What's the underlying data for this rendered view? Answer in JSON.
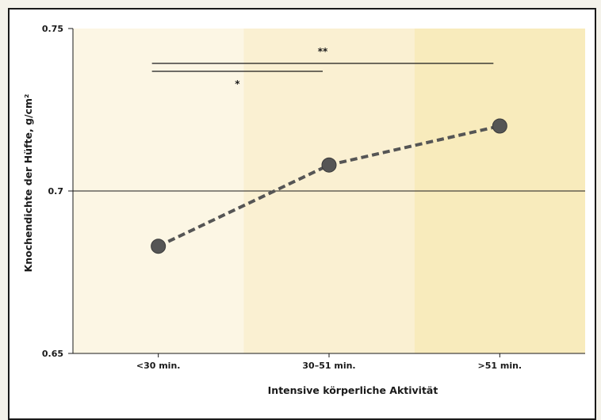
{
  "chart_data": {
    "type": "line",
    "categories": [
      "<30 min.",
      "30–51 min.",
      ">51 min."
    ],
    "values": [
      0.683,
      0.708,
      0.72
    ],
    "xlabel": "Intensive körperliche Aktivität",
    "ylabel": "Knochendichte der Hüfte, g/cm²",
    "ylim": [
      0.65,
      0.75
    ],
    "yticks": [
      0.65,
      0.7,
      0.75
    ],
    "ytick_labels": [
      "0.65",
      "0.7",
      "0.75"
    ],
    "line_style": "dashed",
    "grid": false,
    "significance": [
      {
        "label": "**",
        "from": 0,
        "to": 2
      },
      {
        "label": "*",
        "from": 0,
        "to": 1
      }
    ],
    "colors": {
      "line": "#555555",
      "marker": "#555555",
      "band_1": "#fcf6e4",
      "band_2": "#faf0d2",
      "band_3": "#f8ebbc"
    }
  }
}
